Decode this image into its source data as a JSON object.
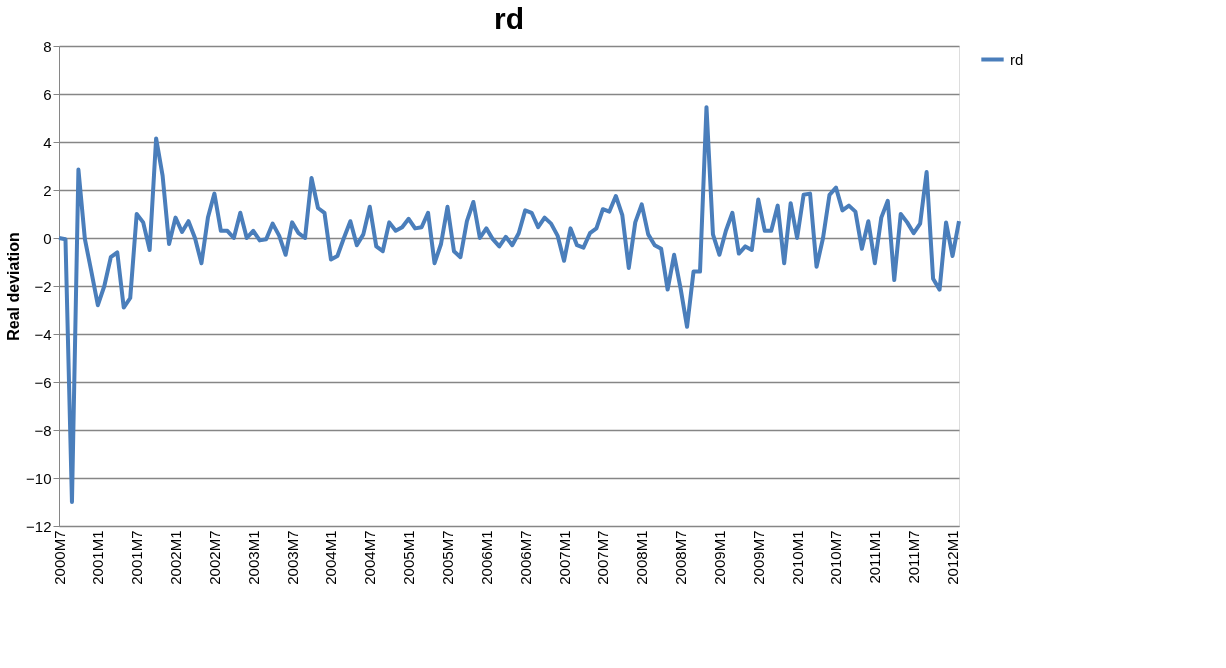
{
  "chart_data": {
    "type": "line",
    "title": "rd",
    "ylabel": "Real deviation",
    "categories": [
      "2000M7",
      null,
      null,
      null,
      null,
      null,
      "2001M1",
      null,
      null,
      null,
      null,
      null,
      "2001M7",
      null,
      null,
      null,
      null,
      null,
      "2002M1",
      null,
      null,
      null,
      null,
      null,
      "2002M7",
      null,
      null,
      null,
      null,
      null,
      "2003M1",
      null,
      null,
      null,
      null,
      null,
      "2003M7",
      null,
      null,
      null,
      null,
      null,
      "2004M1",
      null,
      null,
      null,
      null,
      null,
      "2004M7",
      null,
      null,
      null,
      null,
      null,
      "2005M1",
      null,
      null,
      null,
      null,
      null,
      "2005M7",
      null,
      null,
      null,
      null,
      null,
      "2006M1",
      null,
      null,
      null,
      null,
      null,
      "2006M7",
      null,
      null,
      null,
      null,
      null,
      "2007M1",
      null,
      null,
      null,
      null,
      null,
      "2007M7",
      null,
      null,
      null,
      null,
      null,
      "2008M1",
      null,
      null,
      null,
      null,
      null,
      "2008M7",
      null,
      null,
      null,
      null,
      null,
      "2009M1",
      null,
      null,
      null,
      null,
      null,
      "2009M7",
      null,
      null,
      null,
      null,
      null,
      "2010M1",
      null,
      null,
      null,
      null,
      null,
      "2010M7",
      null,
      null,
      null,
      null,
      null,
      "2011M1",
      null,
      null,
      null,
      null,
      null,
      "2011M7",
      null,
      null,
      null,
      null,
      null,
      "2012M1",
      null
    ],
    "series": [
      {
        "name": "rd",
        "color": "#4a7ebb",
        "values": [
          0.0,
          -0.05,
          -11.0,
          2.85,
          -0.05,
          -1.4,
          -2.8,
          -2.0,
          -0.8,
          -0.6,
          -2.9,
          -2.5,
          1.0,
          0.65,
          -0.5,
          4.15,
          2.6,
          -0.25,
          0.85,
          0.25,
          0.7,
          0.0,
          -1.05,
          0.85,
          1.85,
          0.3,
          0.3,
          0.0,
          1.05,
          0.0,
          0.3,
          -0.1,
          -0.05,
          0.6,
          0.1,
          -0.7,
          0.65,
          0.2,
          0.0,
          2.5,
          1.25,
          1.05,
          -0.9,
          -0.75,
          0.0,
          0.7,
          -0.3,
          0.15,
          1.3,
          -0.35,
          -0.55,
          0.65,
          0.3,
          0.45,
          0.8,
          0.4,
          0.45,
          1.05,
          -1.05,
          -0.25,
          1.3,
          -0.55,
          -0.8,
          0.7,
          1.5,
          0.0,
          0.4,
          -0.05,
          -0.35,
          0.05,
          -0.3,
          0.2,
          1.15,
          1.05,
          0.45,
          0.85,
          0.6,
          0.1,
          -0.95,
          0.4,
          -0.3,
          -0.4,
          0.2,
          0.4,
          1.2,
          1.1,
          1.75,
          0.95,
          -1.25,
          0.65,
          1.4,
          0.15,
          -0.3,
          -0.45,
          -2.15,
          -0.7,
          -2.1,
          -3.7,
          -1.4,
          -1.4,
          5.45,
          0.15,
          -0.7,
          0.3,
          1.05,
          -0.65,
          -0.35,
          -0.5,
          1.6,
          0.3,
          0.3,
          1.35,
          -1.05,
          1.45,
          0.0,
          1.8,
          1.85,
          -1.2,
          0.0,
          1.8,
          2.1,
          1.15,
          1.35,
          1.1,
          -0.45,
          0.7,
          -1.05,
          0.85,
          1.55,
          -1.75,
          1.0,
          0.65,
          0.2,
          0.6,
          2.75,
          -1.7,
          -2.15,
          0.65,
          -0.75,
          0.7
        ]
      }
    ],
    "ylim": [
      -12,
      8
    ],
    "yticks": [
      -12,
      -10,
      -8,
      -6,
      -4,
      -2,
      0,
      2,
      4,
      6,
      8
    ],
    "grid": "y",
    "legend": "right",
    "marker": "none",
    "line_style": "solid"
  }
}
